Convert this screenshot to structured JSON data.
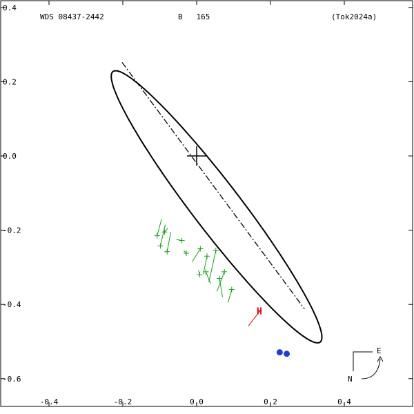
{
  "header": {
    "wds_id": "WDS 08437-2442",
    "component_grade": "B   165",
    "reference": "(Tok2024a)"
  },
  "chart_data": {
    "type": "scatter",
    "title": "",
    "xlabel": "",
    "ylabel": "",
    "xlim": [
      -0.5,
      0.57
    ],
    "ylim": [
      -0.68,
      0.41
    ],
    "x_ticks": [
      -0.4,
      -0.2,
      0.0,
      0.2,
      0.4
    ],
    "x_tick_labels": [
      "-0.4",
      "-0.2",
      "0.0",
      "0.2",
      "0.4"
    ],
    "y_ticks": [
      0.4,
      0.2,
      0.0,
      -0.2,
      -0.4,
      -0.6
    ],
    "y_tick_labels": [
      "0.4",
      "0.2",
      "0.0",
      "-0.2",
      "-0.4",
      "-0.6"
    ],
    "origin_marker": {
      "x": 0.0,
      "y": 0.0,
      "shape": "cross"
    },
    "orbit": {
      "center": [
        0.054,
        -0.137
      ],
      "semi_axis_major": 0.46,
      "semi_axis_minor": 0.065,
      "major_axis_angle_deg": 127.6,
      "color": "#000000"
    },
    "line_of_nodes": {
      "from": [
        -0.202,
        0.252
      ],
      "to": [
        0.292,
        -0.412
      ],
      "style": "dash-dot"
    },
    "observations": {
      "color": "#1a9a1a",
      "points": [
        {
          "obs": [
            -0.107,
            -0.215
          ],
          "pred": [
            -0.095,
            -0.17
          ]
        },
        {
          "obs": [
            -0.098,
            -0.242
          ],
          "pred": [
            -0.085,
            -0.185
          ]
        },
        {
          "obs": [
            -0.087,
            -0.205
          ],
          "pred": [
            -0.078,
            -0.195
          ]
        },
        {
          "obs": [
            -0.08,
            -0.258
          ],
          "pred": [
            -0.07,
            -0.205
          ]
        },
        {
          "obs": [
            -0.04,
            -0.228
          ],
          "pred": [
            -0.055,
            -0.225
          ]
        },
        {
          "obs": [
            -0.028,
            -0.262
          ],
          "pred": [
            -0.035,
            -0.255
          ]
        },
        {
          "obs": [
            0.01,
            -0.25
          ],
          "pred": [
            -0.012,
            -0.285
          ]
        },
        {
          "obs": [
            0.008,
            -0.32
          ],
          "pred": [
            0.005,
            -0.308
          ]
        },
        {
          "obs": [
            0.028,
            -0.27
          ],
          "pred": [
            0.018,
            -0.318
          ]
        },
        {
          "obs": [
            0.052,
            -0.255
          ],
          "pred": [
            0.033,
            -0.34
          ]
        },
        {
          "obs": [
            0.025,
            -0.312
          ],
          "pred": [
            0.038,
            -0.345
          ]
        },
        {
          "obs": [
            0.075,
            -0.312
          ],
          "pred": [
            0.055,
            -0.365
          ]
        },
        {
          "obs": [
            0.095,
            -0.36
          ],
          "pred": [
            0.085,
            -0.395
          ]
        },
        {
          "obs": [
            0.062,
            -0.33
          ],
          "pred": [
            0.07,
            -0.38
          ]
        }
      ]
    },
    "hipparcos_point": {
      "label": "H",
      "obs": [
        0.172,
        -0.417
      ],
      "pred": [
        0.14,
        -0.458
      ],
      "color": "#e00000"
    },
    "current_positions": {
      "color": "#1f3fd0",
      "points": [
        [
          0.225,
          -0.529
        ],
        [
          0.244,
          -0.533
        ]
      ]
    },
    "compass": {
      "north_label": "N",
      "east_label": "E"
    }
  }
}
